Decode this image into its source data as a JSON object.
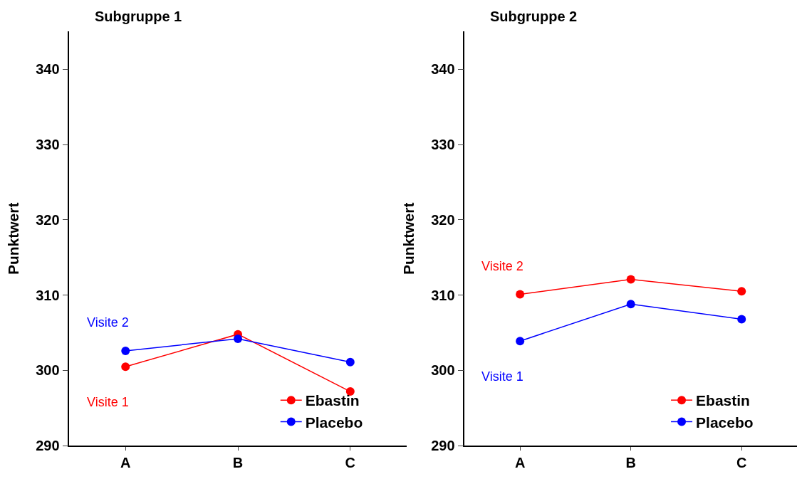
{
  "chart_data": [
    {
      "type": "line",
      "title": "Subgruppe 1",
      "ylabel": "Punktwert",
      "categories": [
        "A",
        "B",
        "C"
      ],
      "series": [
        {
          "name": "Ebastin",
          "color": "#ff0000",
          "values": [
            300.5,
            304.8,
            297.2
          ]
        },
        {
          "name": "Placebo",
          "color": "#0000ff",
          "values": [
            302.6,
            304.2,
            301.1
          ]
        }
      ],
      "annotations": [
        {
          "text": "Visite 2",
          "x": "A",
          "y": 302.6
        },
        {
          "text": "Visite 1",
          "x": "A",
          "y": 300.5
        }
      ],
      "ylim": [
        290,
        345
      ],
      "yticks": [
        290,
        300,
        310,
        320,
        330,
        340
      ],
      "legend": "bottom right",
      "marker": "circle",
      "line_style": "solid"
    },
    {
      "type": "line",
      "title": "Subgruppe 2",
      "ylabel": "Punktwert",
      "categories": [
        "A",
        "B",
        "C"
      ],
      "series": [
        {
          "name": "Ebastin",
          "color": "#ff0000",
          "values": [
            310.1,
            312.1,
            310.5
          ]
        },
        {
          "name": "Placebo",
          "color": "#0000ff",
          "values": [
            303.9,
            308.8,
            306.8
          ]
        }
      ],
      "annotations": [
        {
          "text": "Visite 2",
          "x": "A",
          "y": 310.1
        },
        {
          "text": "Visite 1",
          "x": "A",
          "y": 303.9
        }
      ],
      "ylim": [
        290,
        345
      ],
      "yticks": [
        290,
        300,
        310,
        320,
        330,
        340
      ],
      "legend": "bottom right",
      "marker": "circle",
      "line_style": "solid"
    }
  ]
}
